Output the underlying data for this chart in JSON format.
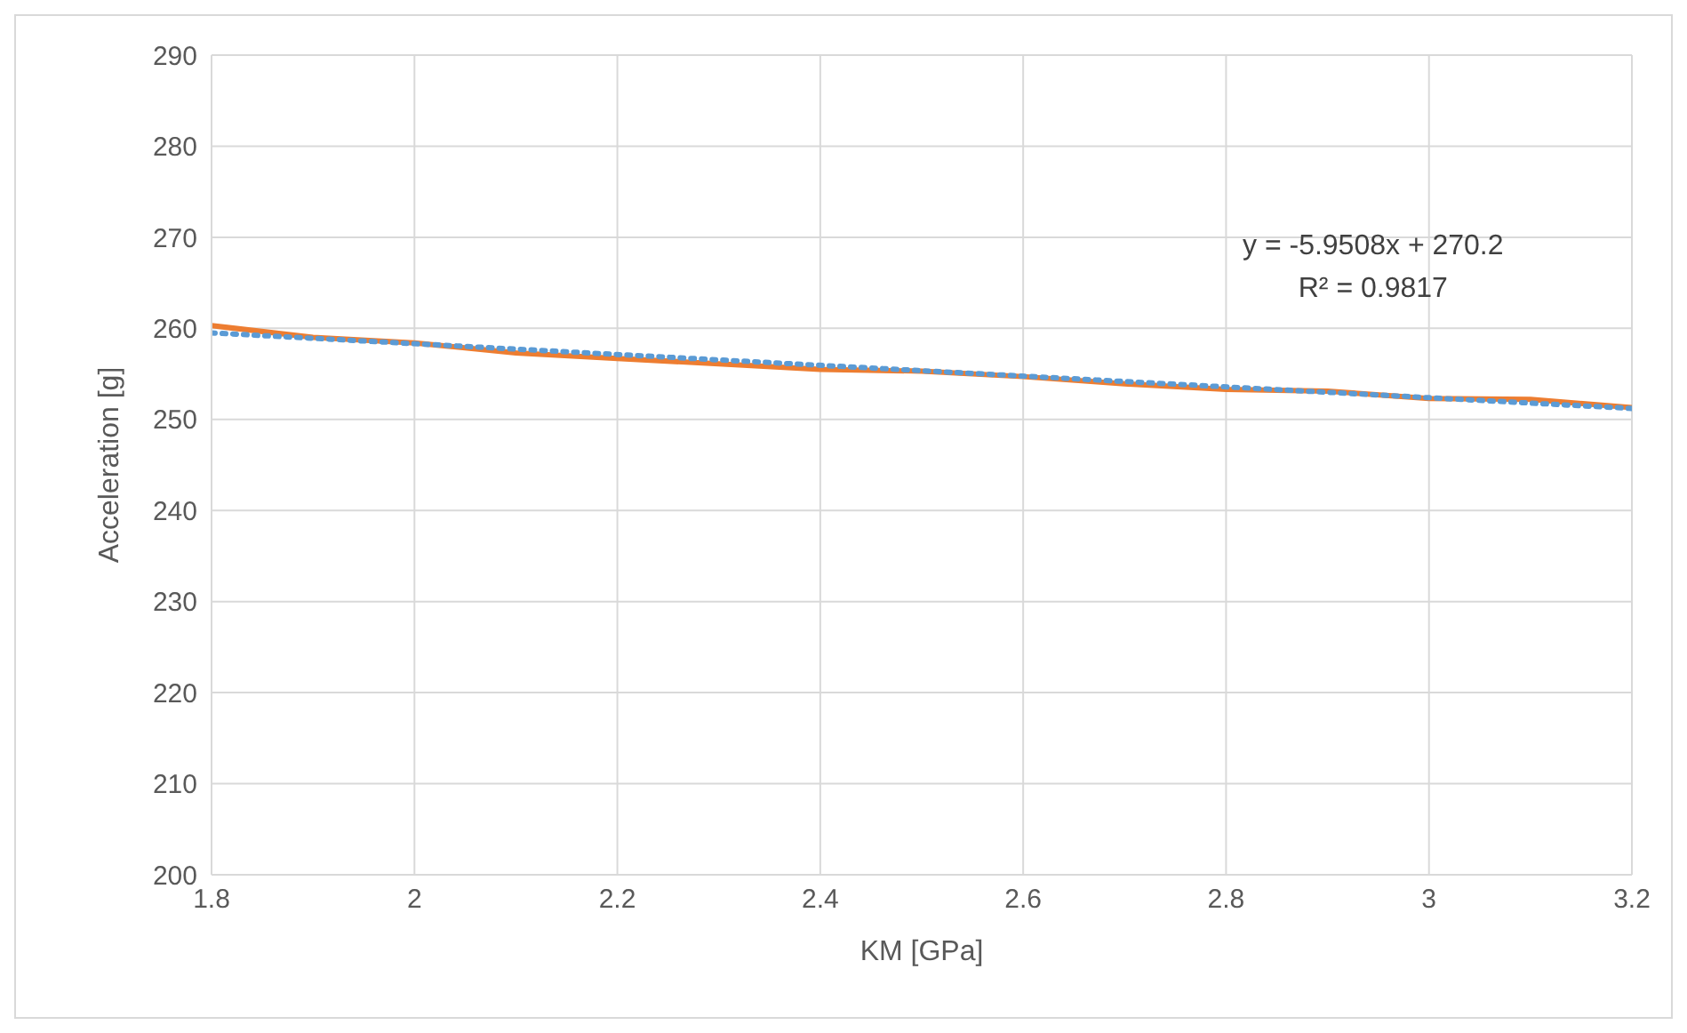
{
  "chart_data": {
    "type": "line",
    "xlabel": "KM [GPa]",
    "ylabel": "Acceleration [g]",
    "x": [
      1.8,
      1.9,
      2.0,
      2.1,
      2.2,
      2.3,
      2.4,
      2.5,
      2.6,
      2.7,
      2.8,
      2.9,
      3.0,
      3.1,
      3.2
    ],
    "series": [
      {
        "color": "#ed7d31",
        "values": [
          260.3,
          259.0,
          258.4,
          257.3,
          256.7,
          256.1,
          255.5,
          255.3,
          254.7,
          253.9,
          253.3,
          253.1,
          252.3,
          252.2,
          251.3
        ]
      },
      {
        "type": "line",
        "x": [
          1.8,
          3.2
        ],
        "values": [
          259.5,
          251.2
        ],
        "color": "#5b9bd5",
        "line_style": "dotted"
      }
    ],
    "xlim": [
      1.8,
      3.2
    ],
    "xticks": [
      1.8,
      2,
      2.2,
      2.4,
      2.6,
      2.8,
      3,
      3.2
    ],
    "ylim": [
      200,
      290
    ],
    "yticks": [
      200,
      210,
      220,
      230,
      240,
      250,
      260,
      270,
      280,
      290
    ],
    "grid": true,
    "legend": false,
    "marker": "none",
    "annotations": [
      "y = -5.9508x + 270.2",
      "R² = 0.9817"
    ]
  }
}
